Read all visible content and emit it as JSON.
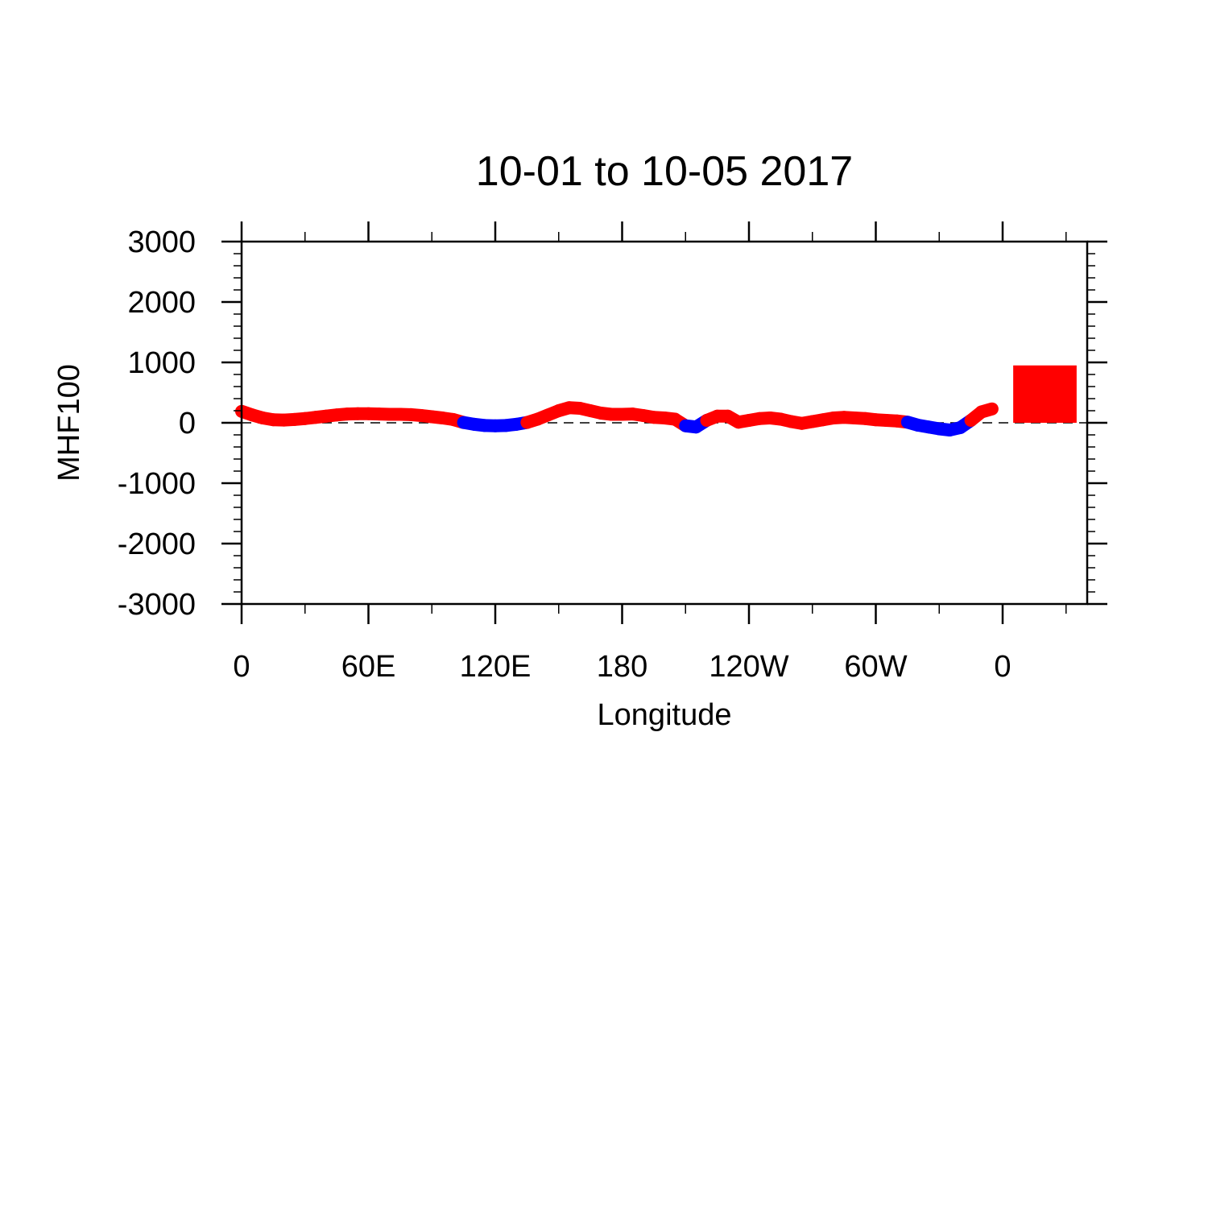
{
  "chart_data": {
    "type": "line",
    "title": "10-01 to 10-05 2017",
    "x_label": "Longitude",
    "y_label": "MHF100",
    "xlim": [
      0,
      400
    ],
    "ylim": [
      -3000,
      3000
    ],
    "xticks": [
      0,
      {
        "value": 60,
        "label": "60E"
      },
      {
        "value": 120,
        "label": "120E"
      },
      180,
      {
        "value": 240,
        "label": "120W"
      },
      {
        "value": 300,
        "label": "60W"
      },
      {
        "value": 360,
        "label": "0"
      }
    ],
    "xminorticks": [
      30,
      90,
      150,
      210,
      270,
      330,
      390
    ],
    "yticks": [
      3000,
      2000,
      1000,
      0,
      -1000,
      -2000,
      -3000
    ],
    "yminorticks": [
      2800,
      2600,
      2400,
      2200,
      1800,
      1600,
      1400,
      1200,
      800,
      600,
      400,
      200,
      -200,
      -400,
      -600,
      -800,
      -1200,
      -1400,
      -1600,
      -1800,
      -2200,
      -2400,
      -2600,
      -2800
    ],
    "reference_line": 0,
    "positive_color": "#ff0000",
    "negative_color": "#0000ff",
    "x": [
      0,
      5,
      10,
      15,
      20,
      25,
      30,
      35,
      40,
      45,
      50,
      55,
      60,
      65,
      70,
      75,
      80,
      85,
      90,
      95,
      100,
      105,
      110,
      115,
      120,
      125,
      130,
      135,
      140,
      145,
      150,
      155,
      160,
      165,
      170,
      175,
      180,
      185,
      190,
      195,
      200,
      205,
      210,
      215,
      220,
      225,
      230,
      235,
      240,
      245,
      250,
      255,
      260,
      265,
      270,
      275,
      280,
      285,
      290,
      295,
      300,
      305,
      310,
      315,
      320,
      325,
      330,
      335,
      340,
      345,
      350,
      355
    ],
    "values": [
      190,
      130,
      80,
      50,
      45,
      55,
      70,
      90,
      110,
      130,
      145,
      150,
      150,
      145,
      140,
      140,
      135,
      120,
      100,
      80,
      55,
      5,
      -25,
      -45,
      -50,
      -45,
      -25,
      5,
      60,
      130,
      200,
      250,
      240,
      200,
      160,
      140,
      140,
      145,
      120,
      90,
      80,
      60,
      -50,
      -70,
      40,
      110,
      110,
      10,
      40,
      70,
      80,
      60,
      20,
      -10,
      20,
      50,
      80,
      90,
      80,
      70,
      50,
      40,
      30,
      10,
      -40,
      -70,
      -100,
      -120,
      -80,
      40,
      180,
      230
    ],
    "bar": {
      "left": 365,
      "right": 395,
      "value": 950,
      "color": "#ff0000"
    }
  }
}
